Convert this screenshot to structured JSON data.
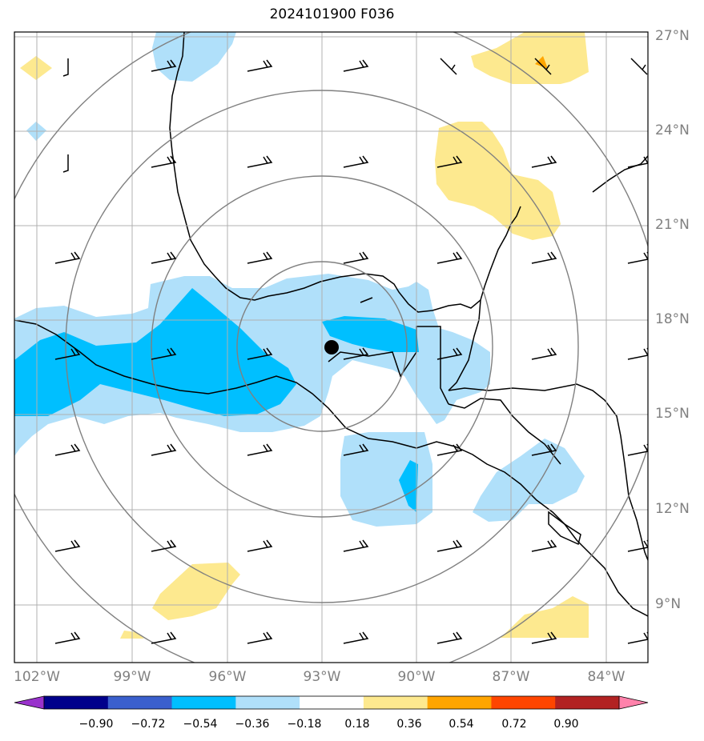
{
  "title": "2024101900 F036",
  "lat_labels": [
    "27°N",
    "24°N",
    "21°N",
    "18°N",
    "15°N",
    "12°N",
    "9°N"
  ],
  "lon_labels": [
    "102°W",
    "99°W",
    "96°W",
    "93°W",
    "90°W",
    "87°W",
    "84°W"
  ],
  "colorbar": {
    "labels": [
      "−0.90",
      "−0.72",
      "−0.54",
      "−0.36",
      "−0.18",
      "0.18",
      "0.36",
      "0.54",
      "0.72",
      "0.90"
    ],
    "colors": [
      "#9932cc",
      "#00008b",
      "#3a5fcd",
      "#00bfff",
      "#b0e0fa",
      "#ffffff",
      "#fde98f",
      "#ffa500",
      "#ff4500",
      "#b22222",
      "#ff82ab"
    ]
  },
  "storm_center": {
    "lat": 17.3,
    "lon": -92.7
  }
}
